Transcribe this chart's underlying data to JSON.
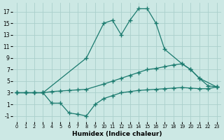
{
  "xlabel": "Humidex (Indice chaleur)",
  "x_ticks": [
    0,
    1,
    2,
    3,
    4,
    5,
    6,
    7,
    8,
    9,
    10,
    11,
    12,
    13,
    14,
    15,
    16,
    17,
    18,
    19,
    20,
    21,
    22,
    23
  ],
  "y_ticks": [
    -1,
    1,
    3,
    5,
    7,
    9,
    11,
    13,
    15,
    17
  ],
  "ylim": [
    -2.0,
    18.5
  ],
  "xlim": [
    -0.5,
    23.5
  ],
  "bg_color": "#cce8e4",
  "grid_color": "#aacfcb",
  "line_color": "#1a7a6e",
  "line_top": {
    "x": [
      0,
      1,
      2,
      3,
      8,
      10,
      11,
      12,
      13,
      14,
      15,
      16,
      17,
      19,
      20,
      21,
      23
    ],
    "y": [
      3,
      3,
      3,
      3,
      9,
      15,
      15.5,
      13,
      15.5,
      17.5,
      17.5,
      15,
      10.5,
      8,
      7,
      5.5,
      4
    ]
  },
  "line_mid": {
    "x": [
      0,
      1,
      2,
      3,
      4,
      5,
      6,
      7,
      8,
      10,
      11,
      12,
      13,
      14,
      15,
      16,
      17,
      18,
      19,
      20,
      21,
      22,
      23
    ],
    "y": [
      3,
      3,
      3,
      3,
      3.2,
      3.3,
      3.4,
      3.5,
      3.6,
      4.5,
      5,
      5.5,
      6,
      6.5,
      7,
      7.2,
      7.5,
      7.8,
      8,
      7,
      5.5,
      4.2,
      4
    ]
  },
  "line_bot": {
    "x": [
      0,
      1,
      2,
      3,
      4,
      5,
      6,
      7,
      8,
      9,
      10,
      11,
      12,
      13,
      14,
      15,
      16,
      17,
      18,
      19,
      20,
      21,
      22,
      23
    ],
    "y": [
      3,
      3,
      3,
      3,
      1.2,
      1.2,
      -0.5,
      -0.7,
      -1,
      1,
      2,
      2.5,
      3,
      3.2,
      3.4,
      3.5,
      3.6,
      3.7,
      3.8,
      3.9,
      3.8,
      3.7,
      3.7,
      4
    ]
  }
}
